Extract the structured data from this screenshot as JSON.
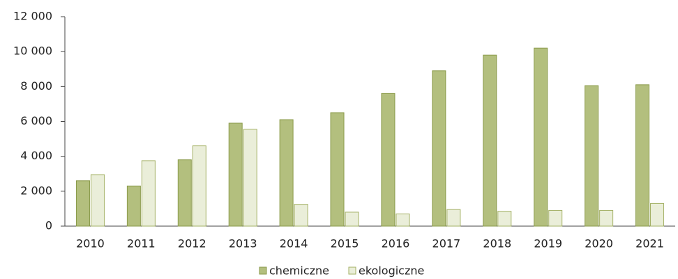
{
  "chart_data": {
    "type": "bar",
    "categories": [
      "2010",
      "2011",
      "2012",
      "2013",
      "2014",
      "2015",
      "2016",
      "2017",
      "2018",
      "2019",
      "2020",
      "2021"
    ],
    "series": [
      {
        "name": "chemiczne",
        "color": "#b3bf7e",
        "values": [
          2600,
          2300,
          3800,
          5900,
          6100,
          6500,
          7600,
          8900,
          9800,
          10200,
          8050,
          8100
        ]
      },
      {
        "name": "ekologiczne",
        "color": "#eaeed9",
        "values": [
          2950,
          3750,
          4600,
          5550,
          1250,
          800,
          700,
          950,
          850,
          900,
          900,
          1300
        ]
      }
    ],
    "ylim": [
      0,
      12000
    ],
    "yticks": [
      0,
      {
        "value": 2000,
        "label": "2 000"
      },
      {
        "value": 4000,
        "label": "4 000"
      },
      {
        "value": 6000,
        "label": "6 000"
      },
      {
        "value": 8000,
        "label": "8 000"
      },
      {
        "value": 10000,
        "label": "10 000"
      },
      {
        "value": 12000,
        "label": "12 000"
      }
    ],
    "grid": false,
    "legend": "bottom"
  }
}
